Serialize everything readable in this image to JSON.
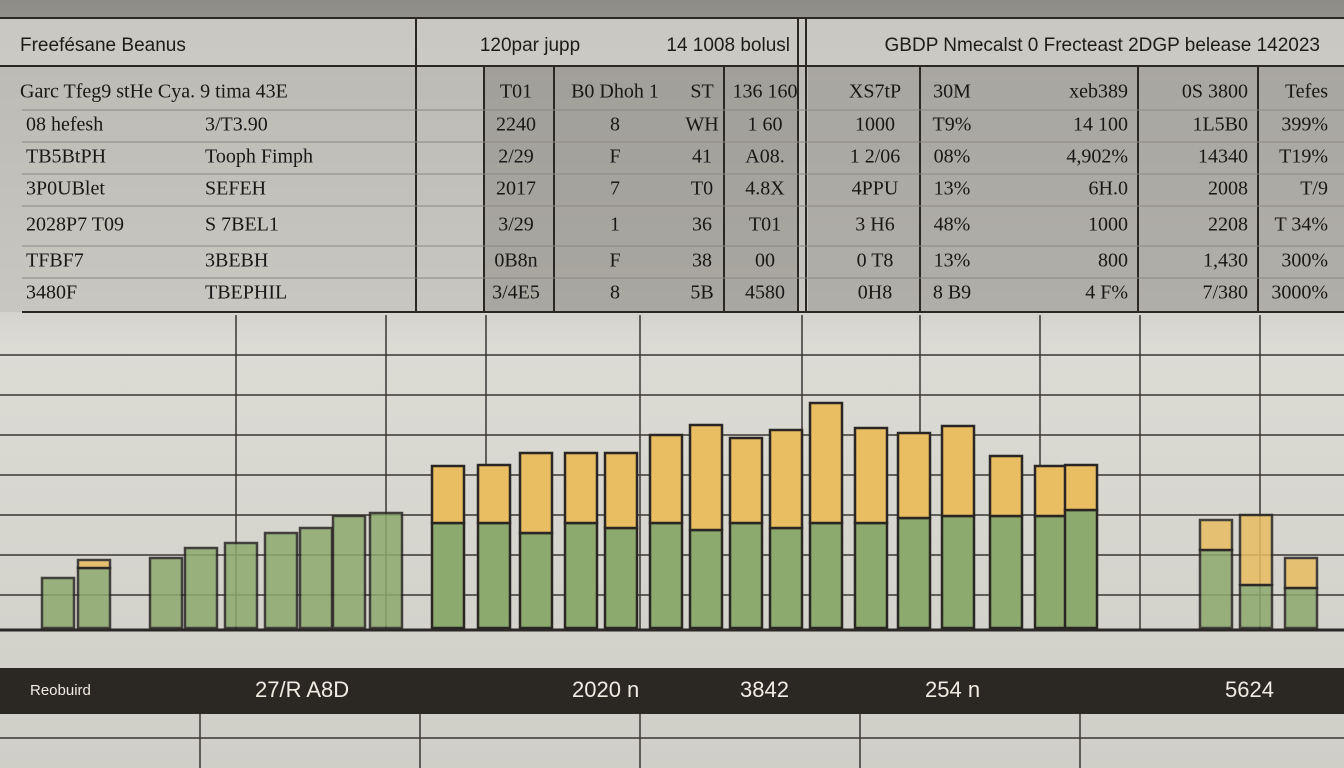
{
  "header": [
    "Freefésane Beanus",
    "120par jupp",
    "14 1008 bolusl",
    "GBDP Nmecalst 0 Frecteast 2DGP belease 142023"
  ],
  "table": {
    "rows": [
      {
        "label": "Garc Tfeg9 stHe Cya. 9 tima 43E",
        "cells": [
          "T01",
          "B0 Dhoh 1",
          "ST",
          "136 160",
          "XS7tP",
          "30M",
          "xeb389",
          "0S 3800",
          "Tefes"
        ]
      },
      {
        "label": "08 hefesh",
        "value": "3/T3.90",
        "cells": [
          "2240",
          "8",
          "WH",
          "1 60",
          "1000",
          "T9%",
          "14 100",
          "1L5B0",
          "399%"
        ]
      },
      {
        "label": "TB5BtPH",
        "value": "Tooph Fimph",
        "cells": [
          "2/29",
          "F",
          "41",
          "A08.",
          "1 2/06",
          "08%",
          "4,902%",
          "14340",
          "T19%"
        ]
      },
      {
        "label": "3P0UBlet",
        "value": "SEFEH",
        "cells": [
          "2017",
          "7",
          "T0",
          "4.8X",
          "4PPU",
          "13%",
          "6H.0",
          "2008",
          "T/9"
        ]
      },
      {
        "label": "2028P7 T09",
        "value": "S 7BEL1",
        "cells": [
          "3/29",
          "1",
          "36",
          "T01",
          "3 H6",
          "48%",
          "1000",
          "2208",
          "T 34%"
        ]
      },
      {
        "label": "TFBF7",
        "value": "3BEBH",
        "cells": [
          "0B8n",
          "F",
          "38",
          "00",
          "0 T8",
          "13%",
          "800",
          "1,430",
          "300%"
        ]
      },
      {
        "label": "3480F",
        "value": "TBEPHIL",
        "cells": [
          "3/4E5",
          "8",
          "5B",
          "4580",
          "0H8",
          "8 B9",
          "4 F%",
          "7/380",
          "3000%"
        ]
      }
    ]
  },
  "footer": [
    "Reobuird",
    "27/R A8D",
    "2020 n",
    "3842",
    "254 n",
    "5624"
  ],
  "chart_data": {
    "type": "bar",
    "stacked": true,
    "categories": [
      null,
      null,
      null,
      null,
      null,
      null,
      null,
      null,
      null,
      null,
      null,
      null,
      null,
      null,
      null,
      null,
      null,
      null,
      null,
      null,
      null,
      null,
      null,
      null,
      null,
      null,
      null,
      null
    ],
    "ylim": [
      0,
      240
    ],
    "series": [
      {
        "name": null,
        "color": "#8daa6e",
        "values": [
          50,
          60,
          70,
          80,
          85,
          95,
          100,
          112,
          115,
          105,
          105,
          95,
          105,
          100,
          105,
          98,
          105,
          100,
          105,
          105,
          110,
          112,
          112,
          112,
          118,
          78,
          43,
          40
        ]
      },
      {
        "name": null,
        "color": "#e9bd62",
        "values": [
          0,
          8,
          0,
          0,
          0,
          0,
          0,
          0,
          0,
          57,
          58,
          80,
          70,
          75,
          88,
          105,
          85,
          98,
          120,
          95,
          85,
          90,
          60,
          50,
          45,
          30,
          70,
          30
        ]
      }
    ]
  }
}
